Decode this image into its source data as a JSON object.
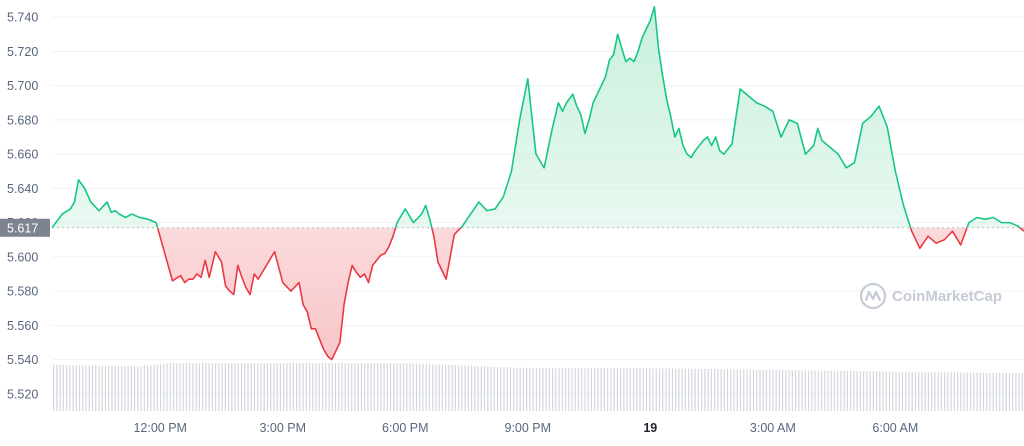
{
  "chart_data": {
    "type": "line",
    "baseline": 5.617,
    "baseline_label": "5.617",
    "ylim": [
      5.51,
      5.75
    ],
    "y_ticks": [
      {
        "value": 5.52,
        "label": "5.520"
      },
      {
        "value": 5.54,
        "label": "5.540"
      },
      {
        "value": 5.56,
        "label": "5.560"
      },
      {
        "value": 5.58,
        "label": "5.580"
      },
      {
        "value": 5.6,
        "label": "5.600"
      },
      {
        "value": 5.62,
        "label": "5.620"
      },
      {
        "value": 5.64,
        "label": "5.640"
      },
      {
        "value": 5.66,
        "label": "5.660"
      },
      {
        "value": 5.68,
        "label": "5.680"
      },
      {
        "value": 5.7,
        "label": "5.700"
      },
      {
        "value": 5.72,
        "label": "5.720"
      },
      {
        "value": 5.74,
        "label": "5.740"
      }
    ],
    "x_ticks": [
      {
        "t": 12,
        "label": "12:00 PM",
        "bold": false
      },
      {
        "t": 15,
        "label": "3:00 PM",
        "bold": false
      },
      {
        "t": 18,
        "label": "6:00 PM",
        "bold": false
      },
      {
        "t": 21,
        "label": "9:00 PM",
        "bold": false
      },
      {
        "t": 24,
        "label": "19",
        "bold": true
      },
      {
        "t": 27,
        "label": "3:00 AM",
        "bold": false
      },
      {
        "t": 30,
        "label": "6:00 AM",
        "bold": false
      }
    ],
    "xlim": [
      9.35,
      33.15
    ],
    "price": {
      "t": [
        9.35,
        9.6,
        9.8,
        9.9,
        10.0,
        10.15,
        10.3,
        10.5,
        10.7,
        10.8,
        10.9,
        11.0,
        11.15,
        11.3,
        11.5,
        11.7,
        11.9,
        12.1,
        12.3,
        12.5,
        12.6,
        12.7,
        12.8,
        12.9,
        13.0,
        13.1,
        13.2,
        13.35,
        13.5,
        13.6,
        13.7,
        13.8,
        13.9,
        14.0,
        14.1,
        14.2,
        14.3,
        14.4,
        14.6,
        14.8,
        15.0,
        15.2,
        15.4,
        15.5,
        15.6,
        15.7,
        15.8,
        15.9,
        16.0,
        16.1,
        16.2,
        16.3,
        16.4,
        16.5,
        16.6,
        16.7,
        16.8,
        16.9,
        17.0,
        17.1,
        17.2,
        17.3,
        17.4,
        17.5,
        17.6,
        17.7,
        17.8,
        18.0,
        18.2,
        18.4,
        18.5,
        18.6,
        18.7,
        18.8,
        19.0,
        19.2,
        19.4,
        19.6,
        19.8,
        20.0,
        20.2,
        20.4,
        20.6,
        20.8,
        21.0,
        21.2,
        21.4,
        21.6,
        21.75,
        21.85,
        21.95,
        22.1,
        22.2,
        22.3,
        22.4,
        22.5,
        22.6,
        22.7,
        22.8,
        22.9,
        23.0,
        23.1,
        23.2,
        23.3,
        23.4,
        23.5,
        23.6,
        23.7,
        23.8,
        23.9,
        24.0,
        24.1,
        24.2,
        24.3,
        24.4,
        24.5,
        24.6,
        24.7,
        24.8,
        24.9,
        25.0,
        25.1,
        25.2,
        25.3,
        25.4,
        25.5,
        25.6,
        25.7,
        25.8,
        25.9,
        26.0,
        26.2,
        26.4,
        26.6,
        26.8,
        27.0,
        27.2,
        27.4,
        27.6,
        27.8,
        28.0,
        28.1,
        28.2,
        28.4,
        28.6,
        28.8,
        29.0,
        29.2,
        29.4,
        29.6,
        29.8,
        30.0,
        30.2,
        30.4,
        30.6,
        30.8,
        31.0,
        31.2,
        31.4,
        31.6,
        31.8,
        32.0,
        32.2,
        32.4,
        32.6,
        32.8,
        33.0,
        33.15
      ],
      "v": [
        5.617,
        5.625,
        5.628,
        5.632,
        5.645,
        5.64,
        5.632,
        5.627,
        5.632,
        5.626,
        5.627,
        5.625,
        5.623,
        5.625,
        5.623,
        5.622,
        5.62,
        5.603,
        5.586,
        5.589,
        5.585,
        5.587,
        5.587,
        5.59,
        5.588,
        5.598,
        5.588,
        5.603,
        5.597,
        5.583,
        5.58,
        5.578,
        5.595,
        5.588,
        5.582,
        5.578,
        5.59,
        5.587,
        5.595,
        5.603,
        5.585,
        5.58,
        5.585,
        5.572,
        5.568,
        5.558,
        5.558,
        5.552,
        5.546,
        5.542,
        5.54,
        5.545,
        5.55,
        5.572,
        5.585,
        5.595,
        5.591,
        5.588,
        5.59,
        5.585,
        5.595,
        5.598,
        5.601,
        5.602,
        5.606,
        5.612,
        5.62,
        5.628,
        5.62,
        5.625,
        5.63,
        5.622,
        5.612,
        5.597,
        5.587,
        5.613,
        5.618,
        5.625,
        5.632,
        5.627,
        5.628,
        5.635,
        5.65,
        5.68,
        5.704,
        5.66,
        5.652,
        5.675,
        5.69,
        5.685,
        5.69,
        5.695,
        5.688,
        5.683,
        5.672,
        5.68,
        5.69,
        5.695,
        5.7,
        5.705,
        5.715,
        5.718,
        5.73,
        5.722,
        5.714,
        5.716,
        5.714,
        5.72,
        5.728,
        5.733,
        5.738,
        5.746,
        5.722,
        5.706,
        5.692,
        5.682,
        5.67,
        5.675,
        5.665,
        5.66,
        5.658,
        5.662,
        5.665,
        5.668,
        5.67,
        5.665,
        5.67,
        5.662,
        5.66,
        5.663,
        5.666,
        5.698,
        5.694,
        5.69,
        5.688,
        5.685,
        5.67,
        5.68,
        5.678,
        5.66,
        5.665,
        5.675,
        5.668,
        5.664,
        5.66,
        5.652,
        5.655,
        5.678,
        5.682,
        5.688,
        5.676,
        5.65,
        5.63,
        5.615,
        5.605,
        5.612,
        5.608,
        5.61,
        5.615,
        5.607,
        5.62,
        5.623,
        5.622,
        5.623,
        5.62,
        5.62,
        5.618,
        5.615
      ]
    },
    "volume": {
      "count": 300,
      "t_start": 9.35,
      "t_end": 33.15,
      "anchors_t": [
        9.35,
        11.5,
        12.2,
        15.0,
        18.0,
        21.0,
        24.0,
        27.0,
        30.0,
        33.15
      ],
      "anchors_v": [
        5.537,
        5.536,
        5.538,
        5.538,
        5.538,
        5.535,
        5.535,
        5.534,
        5.533,
        5.532
      ]
    },
    "watermark": "CoinMarketCap",
    "colors": {
      "up": "#16c784",
      "down": "#ea3943",
      "up_fill": "#c8f0dc",
      "down_fill": "#f8c6c9",
      "volume_bar": "#d3d7dd",
      "baseline": "#b8bec8",
      "label_box": "#7d8390",
      "axis_text": "#58667e",
      "watermark": "#c5cbd4"
    }
  }
}
